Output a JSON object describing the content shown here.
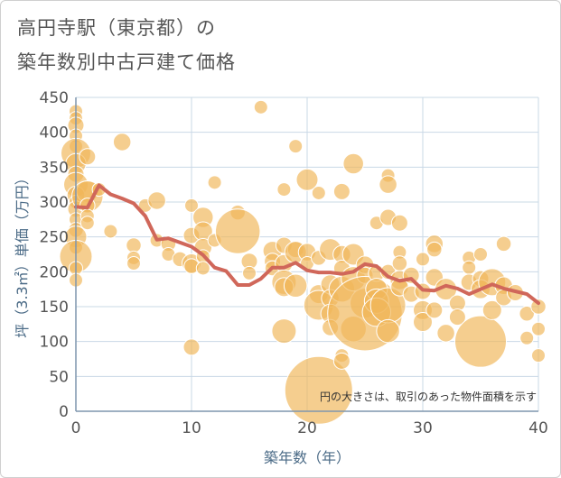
{
  "title_line1": "高円寺駅（東京都）の",
  "title_line2": "築年数別中古戸建て価格",
  "chart_data": {
    "type": "scatter",
    "title": "高円寺駅（東京都）の築年数別中古戸建て価格",
    "xlabel": "築年数（年）",
    "ylabel": "坪（3.3㎡）単価（万円）",
    "xlim": [
      0,
      40
    ],
    "ylim": [
      0,
      450
    ],
    "x_ticks": [
      0,
      10,
      20,
      30,
      40
    ],
    "y_ticks": [
      0,
      50,
      100,
      150,
      200,
      250,
      300,
      350,
      400,
      450
    ],
    "grid": true,
    "annotation": "円の大きさは、取引のあった物件面積を示す",
    "colors": {
      "bubble": "#f0b75a",
      "bubble_edge": "#ffffff",
      "line": "#d0675a",
      "grid": "#c9d8e6",
      "axis": "#7f96ad",
      "text": "#555555"
    },
    "series": [
      {
        "type": "bubble",
        "points": [
          {
            "x": 0,
            "y": 430,
            "s": 1
          },
          {
            "x": 0,
            "y": 420,
            "s": 1
          },
          {
            "x": 0,
            "y": 410,
            "s": 1.2
          },
          {
            "x": 0,
            "y": 395,
            "s": 1
          },
          {
            "x": 0,
            "y": 380,
            "s": 1
          },
          {
            "x": 0,
            "y": 370,
            "s": 2.2
          },
          {
            "x": 0,
            "y": 355,
            "s": 1.5
          },
          {
            "x": 0,
            "y": 340,
            "s": 1.2
          },
          {
            "x": 0,
            "y": 325,
            "s": 1.8
          },
          {
            "x": 0,
            "y": 310,
            "s": 1.3
          },
          {
            "x": 0,
            "y": 300,
            "s": 1
          },
          {
            "x": 0,
            "y": 290,
            "s": 1.2
          },
          {
            "x": 0,
            "y": 275,
            "s": 1
          },
          {
            "x": 0,
            "y": 260,
            "s": 1.1
          },
          {
            "x": 0,
            "y": 250,
            "s": 1.6
          },
          {
            "x": 0,
            "y": 235,
            "s": 1
          },
          {
            "x": 0,
            "y": 222,
            "s": 2.4
          },
          {
            "x": 0,
            "y": 205,
            "s": 1
          },
          {
            "x": 0,
            "y": 188,
            "s": 1
          },
          {
            "x": 1,
            "y": 365,
            "s": 1.2
          },
          {
            "x": 1,
            "y": 315,
            "s": 1.6
          },
          {
            "x": 1,
            "y": 308,
            "s": 2.3
          },
          {
            "x": 1,
            "y": 295,
            "s": 1.1
          },
          {
            "x": 1,
            "y": 280,
            "s": 1
          },
          {
            "x": 1,
            "y": 270,
            "s": 1
          },
          {
            "x": 2,
            "y": 318,
            "s": 1
          },
          {
            "x": 3,
            "y": 258,
            "s": 1
          },
          {
            "x": 4,
            "y": 386,
            "s": 1.3
          },
          {
            "x": 5,
            "y": 238,
            "s": 1.1
          },
          {
            "x": 5,
            "y": 220,
            "s": 1
          },
          {
            "x": 5,
            "y": 212,
            "s": 1
          },
          {
            "x": 6,
            "y": 295,
            "s": 1
          },
          {
            "x": 7,
            "y": 302,
            "s": 1.3
          },
          {
            "x": 7,
            "y": 245,
            "s": 1
          },
          {
            "x": 8,
            "y": 240,
            "s": 1.1
          },
          {
            "x": 8,
            "y": 225,
            "s": 1
          },
          {
            "x": 9,
            "y": 218,
            "s": 1.1
          },
          {
            "x": 10,
            "y": 295,
            "s": 1
          },
          {
            "x": 10,
            "y": 252,
            "s": 1.2
          },
          {
            "x": 10,
            "y": 212,
            "s": 1.4
          },
          {
            "x": 10,
            "y": 208,
            "s": 1.1
          },
          {
            "x": 10,
            "y": 92,
            "s": 1.2
          },
          {
            "x": 11,
            "y": 278,
            "s": 1.5
          },
          {
            "x": 11,
            "y": 258,
            "s": 1.4
          },
          {
            "x": 11,
            "y": 235,
            "s": 1.3
          },
          {
            "x": 11,
            "y": 222,
            "s": 1
          },
          {
            "x": 11,
            "y": 205,
            "s": 1
          },
          {
            "x": 12,
            "y": 328,
            "s": 1
          },
          {
            "x": 12,
            "y": 245,
            "s": 1
          },
          {
            "x": 14,
            "y": 285,
            "s": 1.1
          },
          {
            "x": 14,
            "y": 258,
            "s": 3.3
          },
          {
            "x": 15,
            "y": 215,
            "s": 1.2
          },
          {
            "x": 15,
            "y": 198,
            "s": 1
          },
          {
            "x": 16,
            "y": 436,
            "s": 1
          },
          {
            "x": 17,
            "y": 230,
            "s": 1.4
          },
          {
            "x": 17,
            "y": 215,
            "s": 1.2
          },
          {
            "x": 17,
            "y": 205,
            "s": 1.1
          },
          {
            "x": 18,
            "y": 318,
            "s": 1
          },
          {
            "x": 18,
            "y": 238,
            "s": 1.2
          },
          {
            "x": 18,
            "y": 212,
            "s": 1.3
          },
          {
            "x": 18,
            "y": 185,
            "s": 1.8
          },
          {
            "x": 18,
            "y": 178,
            "s": 1.4
          },
          {
            "x": 18,
            "y": 115,
            "s": 1.8
          },
          {
            "x": 19,
            "y": 380,
            "s": 1
          },
          {
            "x": 19,
            "y": 232,
            "s": 1.2
          },
          {
            "x": 19,
            "y": 228,
            "s": 1.6
          },
          {
            "x": 19,
            "y": 180,
            "s": 1.7
          },
          {
            "x": 20,
            "y": 332,
            "s": 1.6
          },
          {
            "x": 20,
            "y": 228,
            "s": 1.3
          },
          {
            "x": 20,
            "y": 212,
            "s": 1
          },
          {
            "x": 21,
            "y": 313,
            "s": 1
          },
          {
            "x": 21,
            "y": 220,
            "s": 1.1
          },
          {
            "x": 21,
            "y": 168,
            "s": 1.4
          },
          {
            "x": 21,
            "y": 152,
            "s": 2.2
          },
          {
            "x": 21,
            "y": 30,
            "s": 5.0
          },
          {
            "x": 22,
            "y": 232,
            "s": 1.6
          },
          {
            "x": 22,
            "y": 182,
            "s": 1.4
          },
          {
            "x": 22,
            "y": 162,
            "s": 1.3
          },
          {
            "x": 22,
            "y": 140,
            "s": 1.4
          },
          {
            "x": 22,
            "y": 120,
            "s": 1.2
          },
          {
            "x": 23,
            "y": 315,
            "s": 1.2
          },
          {
            "x": 23,
            "y": 225,
            "s": 1.3
          },
          {
            "x": 23,
            "y": 205,
            "s": 1.2
          },
          {
            "x": 23,
            "y": 175,
            "s": 1.9
          },
          {
            "x": 23,
            "y": 80,
            "s": 1
          },
          {
            "x": 23,
            "y": 72,
            "s": 1.2
          },
          {
            "x": 24,
            "y": 355,
            "s": 1.5
          },
          {
            "x": 24,
            "y": 225,
            "s": 1.6
          },
          {
            "x": 24,
            "y": 190,
            "s": 1.8
          },
          {
            "x": 24,
            "y": 118,
            "s": 1.9
          },
          {
            "x": 25,
            "y": 210,
            "s": 1.3
          },
          {
            "x": 25,
            "y": 195,
            "s": 1.2
          },
          {
            "x": 25,
            "y": 155,
            "s": 2.2
          },
          {
            "x": 25,
            "y": 140,
            "s": 5.5
          },
          {
            "x": 26,
            "y": 270,
            "s": 1
          },
          {
            "x": 26,
            "y": 198,
            "s": 1.2
          },
          {
            "x": 26,
            "y": 175,
            "s": 1.6
          },
          {
            "x": 26,
            "y": 158,
            "s": 1.8
          },
          {
            "x": 26,
            "y": 142,
            "s": 2.1
          },
          {
            "x": 27,
            "y": 338,
            "s": 1
          },
          {
            "x": 27,
            "y": 325,
            "s": 1.3
          },
          {
            "x": 27,
            "y": 278,
            "s": 1.2
          },
          {
            "x": 27,
            "y": 200,
            "s": 1.1
          },
          {
            "x": 27,
            "y": 152,
            "s": 2.6
          },
          {
            "x": 27,
            "y": 115,
            "s": 1.7
          },
          {
            "x": 28,
            "y": 270,
            "s": 1.2
          },
          {
            "x": 28,
            "y": 228,
            "s": 1
          },
          {
            "x": 28,
            "y": 212,
            "s": 1.1
          },
          {
            "x": 28,
            "y": 188,
            "s": 1.4
          },
          {
            "x": 28,
            "y": 178,
            "s": 1.3
          },
          {
            "x": 29,
            "y": 195,
            "s": 1.2
          },
          {
            "x": 29,
            "y": 168,
            "s": 1.2
          },
          {
            "x": 30,
            "y": 218,
            "s": 1
          },
          {
            "x": 30,
            "y": 172,
            "s": 1.2
          },
          {
            "x": 30,
            "y": 145,
            "s": 1.4
          },
          {
            "x": 30,
            "y": 128,
            "s": 1.4
          },
          {
            "x": 31,
            "y": 240,
            "s": 1.3
          },
          {
            "x": 31,
            "y": 232,
            "s": 1.1
          },
          {
            "x": 31,
            "y": 192,
            "s": 1.3
          },
          {
            "x": 31,
            "y": 145,
            "s": 1.2
          },
          {
            "x": 32,
            "y": 175,
            "s": 1.6
          },
          {
            "x": 32,
            "y": 112,
            "s": 1.3
          },
          {
            "x": 33,
            "y": 155,
            "s": 1.2
          },
          {
            "x": 33,
            "y": 135,
            "s": 1.2
          },
          {
            "x": 34,
            "y": 220,
            "s": 1
          },
          {
            "x": 34,
            "y": 206,
            "s": 1
          },
          {
            "x": 34,
            "y": 185,
            "s": 1.2
          },
          {
            "x": 35,
            "y": 225,
            "s": 1
          },
          {
            "x": 35,
            "y": 190,
            "s": 1.2
          },
          {
            "x": 35,
            "y": 175,
            "s": 1.4
          },
          {
            "x": 35,
            "y": 100,
            "s": 3.8
          },
          {
            "x": 36,
            "y": 145,
            "s": 1.4
          },
          {
            "x": 36,
            "y": 185,
            "s": 2.0
          },
          {
            "x": 37,
            "y": 240,
            "s": 1.1
          },
          {
            "x": 37,
            "y": 180,
            "s": 1.3
          },
          {
            "x": 37,
            "y": 163,
            "s": 1.2
          },
          {
            "x": 38,
            "y": 170,
            "s": 1.2
          },
          {
            "x": 39,
            "y": 140,
            "s": 1.1
          },
          {
            "x": 39,
            "y": 105,
            "s": 1
          },
          {
            "x": 40,
            "y": 150,
            "s": 1.1
          },
          {
            "x": 40,
            "y": 118,
            "s": 1
          },
          {
            "x": 40,
            "y": 80,
            "s": 1
          }
        ]
      },
      {
        "type": "line",
        "x": [
          0,
          1,
          2,
          3,
          4,
          5,
          6,
          7,
          8,
          9,
          10,
          11,
          12,
          13,
          14,
          15,
          16,
          17,
          18,
          19,
          20,
          21,
          22,
          23,
          24,
          25,
          26,
          27,
          28,
          29,
          30,
          31,
          32,
          33,
          34,
          35,
          36,
          37,
          38,
          39,
          40
        ],
        "y": [
          293,
          292,
          324,
          311,
          305,
          298,
          280,
          246,
          248,
          242,
          236,
          224,
          206,
          201,
          181,
          181,
          190,
          206,
          206,
          213,
          202,
          199,
          199,
          197,
          200,
          211,
          208,
          193,
          187,
          190,
          174,
          173,
          180,
          176,
          168,
          175,
          182,
          176,
          172,
          168,
          155
        ]
      }
    ]
  }
}
